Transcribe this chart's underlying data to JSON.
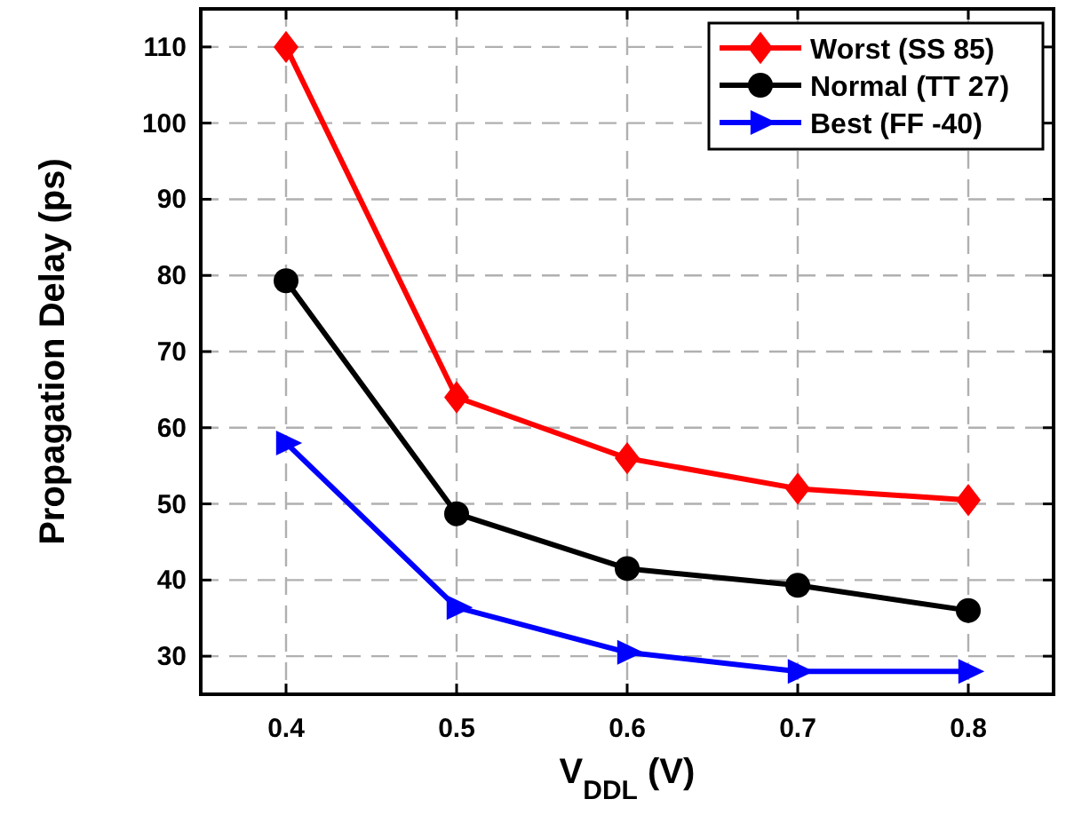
{
  "chart_data": {
    "type": "line",
    "xlabel": "V$_{DDL}$ (V)",
    "ylabel": "Propagation Delay (ps)",
    "x": [
      0.4,
      0.5,
      0.6,
      0.7,
      0.8
    ],
    "series": [
      {
        "name": "Worst (SS 85)",
        "color": "#ff0000",
        "marker": "diamond",
        "values": [
          110,
          64,
          56,
          52,
          50.5
        ]
      },
      {
        "name": "Normal (TT 27)",
        "color": "#000000",
        "marker": "circle",
        "values": [
          79.3,
          48.7,
          41.5,
          39.3,
          36
        ]
      },
      {
        "name": "Best (FF -40)",
        "color": "#0000ff",
        "marker": "triangle",
        "values": [
          58,
          36.4,
          30.5,
          28,
          28
        ]
      }
    ],
    "xlim": [
      0.35,
      0.85
    ],
    "xticks": [
      0.4,
      0.5,
      0.6,
      0.7,
      0.8
    ],
    "ylim": [
      25,
      115
    ],
    "yticks": [
      30,
      40,
      50,
      60,
      70,
      80,
      90,
      100,
      110
    ],
    "grid": true,
    "legend": "top right",
    "line_style": "solid"
  }
}
